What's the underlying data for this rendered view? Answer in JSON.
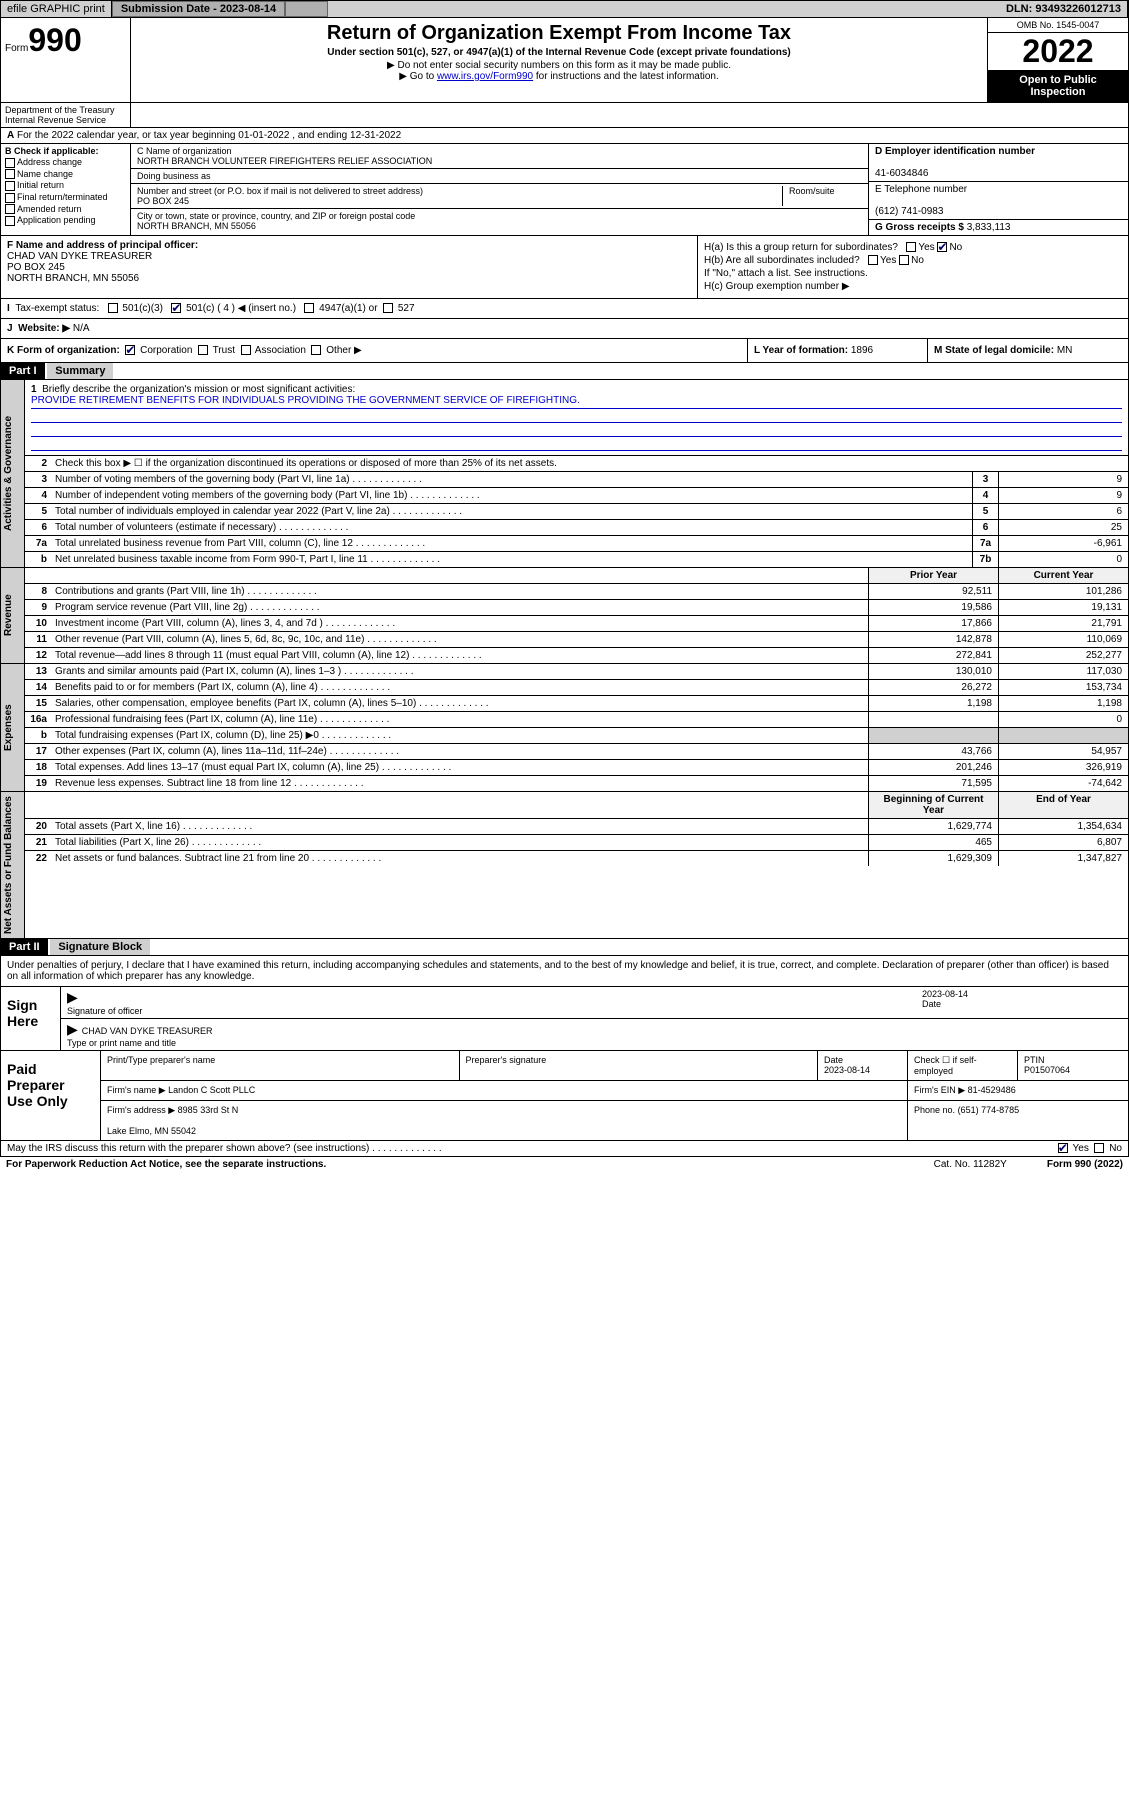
{
  "topbar": {
    "efile": "efile GRAPHIC print",
    "submission_label": "Submission Date - 2023-08-14",
    "dln": "DLN: 93493226012713"
  },
  "header": {
    "form_word": "Form",
    "form_num": "990",
    "title": "Return of Organization Exempt From Income Tax",
    "subtitle": "Under section 501(c), 527, or 4947(a)(1) of the Internal Revenue Code (except private foundations)",
    "note1": "▶ Do not enter social security numbers on this form as it may be made public.",
    "note2_pre": "▶ Go to ",
    "note2_link": "www.irs.gov/Form990",
    "note2_post": " for instructions and the latest information.",
    "omb": "OMB No. 1545-0047",
    "year": "2022",
    "open": "Open to Public Inspection",
    "dept": "Department of the Treasury",
    "irs": "Internal Revenue Service"
  },
  "section_a": "For the 2022 calendar year, or tax year beginning 01-01-2022   , and ending 12-31-2022",
  "col_b": {
    "label": "B Check if applicable:",
    "opts": [
      "Address change",
      "Name change",
      "Initial return",
      "Final return/terminated",
      "Amended return",
      "Application pending"
    ]
  },
  "col_c": {
    "c_label": "C Name of organization",
    "org_name": "NORTH BRANCH VOLUNTEER FIREFIGHTERS RELIEF ASSOCIATION",
    "dba": "Doing business as",
    "addr_label": "Number and street (or P.O. box if mail is not delivered to street address)",
    "room": "Room/suite",
    "addr": "PO BOX 245",
    "city_label": "City or town, state or province, country, and ZIP or foreign postal code",
    "city": "NORTH BRANCH, MN  55056"
  },
  "col_d": {
    "d_label": "D Employer identification number",
    "ein": "41-6034846",
    "e_label": "E Telephone number",
    "phone": "(612) 741-0983",
    "g_label": "G Gross receipts $",
    "gross": "3,833,113"
  },
  "block_f": {
    "f_label": "F Name and address of principal officer:",
    "name": "CHAD VAN DYKE TREASURER",
    "addr1": "PO BOX 245",
    "addr2": "NORTH BRANCH, MN  55056",
    "ha": "H(a)  Is this a group return for subordinates?",
    "hb": "H(b)  Are all subordinates included?",
    "hb_note": "If \"No,\" attach a list. See instructions.",
    "hc": "H(c)  Group exemption number ▶",
    "yes": "Yes",
    "no": "No"
  },
  "tax_status": {
    "i": "I",
    "label": "Tax-exempt status:",
    "c3": "501(c)(3)",
    "c4": "501(c) ( 4 ) ◀ (insert no.)",
    "a1": "4947(a)(1) or",
    "s527": "527",
    "j": "J",
    "web_label": "Website: ▶",
    "web": "N/A"
  },
  "block_k": {
    "k_label": "K Form of organization:",
    "corp": "Corporation",
    "trust": "Trust",
    "assoc": "Association",
    "other": "Other ▶",
    "l_label": "L Year of formation:",
    "l_val": "1896",
    "m_label": "M State of legal domicile:",
    "m_val": "MN"
  },
  "part1": {
    "hdr": "Part I",
    "title": "Summary",
    "q1": "Briefly describe the organization's mission or most significant activities:",
    "mission": "PROVIDE RETIREMENT BENEFITS FOR INDIVIDUALS PROVIDING THE GOVERNMENT SERVICE OF FIREFIGHTING.",
    "q2": "Check this box ▶ ☐  if the organization discontinued its operations or disposed of more than 25% of its net assets.",
    "rows_ag": [
      {
        "n": "3",
        "d": "Number of voting members of the governing body (Part VI, line 1a)",
        "b": "3",
        "v": "9"
      },
      {
        "n": "4",
        "d": "Number of independent voting members of the governing body (Part VI, line 1b)",
        "b": "4",
        "v": "9"
      },
      {
        "n": "5",
        "d": "Total number of individuals employed in calendar year 2022 (Part V, line 2a)",
        "b": "5",
        "v": "6"
      },
      {
        "n": "6",
        "d": "Total number of volunteers (estimate if necessary)",
        "b": "6",
        "v": "25"
      },
      {
        "n": "7a",
        "d": "Total unrelated business revenue from Part VIII, column (C), line 12",
        "b": "7a",
        "v": "-6,961"
      },
      {
        "n": "b",
        "d": "Net unrelated business taxable income from Form 990-T, Part I, line 11",
        "b": "7b",
        "v": "0"
      }
    ],
    "col_hdrs": {
      "py": "Prior Year",
      "cy": "Current Year"
    },
    "rows_rev": [
      {
        "n": "8",
        "d": "Contributions and grants (Part VIII, line 1h)",
        "py": "92,511",
        "cy": "101,286"
      },
      {
        "n": "9",
        "d": "Program service revenue (Part VIII, line 2g)",
        "py": "19,586",
        "cy": "19,131"
      },
      {
        "n": "10",
        "d": "Investment income (Part VIII, column (A), lines 3, 4, and 7d )",
        "py": "17,866",
        "cy": "21,791"
      },
      {
        "n": "11",
        "d": "Other revenue (Part VIII, column (A), lines 5, 6d, 8c, 9c, 10c, and 11e)",
        "py": "142,878",
        "cy": "110,069"
      },
      {
        "n": "12",
        "d": "Total revenue—add lines 8 through 11 (must equal Part VIII, column (A), line 12)",
        "py": "272,841",
        "cy": "252,277"
      }
    ],
    "rows_exp": [
      {
        "n": "13",
        "d": "Grants and similar amounts paid (Part IX, column (A), lines 1–3 )",
        "py": "130,010",
        "cy": "117,030"
      },
      {
        "n": "14",
        "d": "Benefits paid to or for members (Part IX, column (A), line 4)",
        "py": "26,272",
        "cy": "153,734"
      },
      {
        "n": "15",
        "d": "Salaries, other compensation, employee benefits (Part IX, column (A), lines 5–10)",
        "py": "1,198",
        "cy": "1,198"
      },
      {
        "n": "16a",
        "d": "Professional fundraising fees (Part IX, column (A), line 11e)",
        "py": "",
        "cy": "0"
      },
      {
        "n": "b",
        "d": "Total fundraising expenses (Part IX, column (D), line 25) ▶0",
        "py": "gray",
        "cy": "gray"
      },
      {
        "n": "17",
        "d": "Other expenses (Part IX, column (A), lines 11a–11d, 11f–24e)",
        "py": "43,766",
        "cy": "54,957"
      },
      {
        "n": "18",
        "d": "Total expenses. Add lines 13–17 (must equal Part IX, column (A), line 25)",
        "py": "201,246",
        "cy": "326,919"
      },
      {
        "n": "19",
        "d": "Revenue less expenses. Subtract line 18 from line 12",
        "py": "71,595",
        "cy": "-74,642"
      }
    ],
    "col_hdrs2": {
      "by": "Beginning of Current Year",
      "ey": "End of Year"
    },
    "rows_net": [
      {
        "n": "20",
        "d": "Total assets (Part X, line 16)",
        "py": "1,629,774",
        "cy": "1,354,634"
      },
      {
        "n": "21",
        "d": "Total liabilities (Part X, line 26)",
        "py": "465",
        "cy": "6,807"
      },
      {
        "n": "22",
        "d": "Net assets or fund balances. Subtract line 21 from line 20",
        "py": "1,629,309",
        "cy": "1,347,827"
      }
    ],
    "vlabels": {
      "ag": "Activities & Governance",
      "rev": "Revenue",
      "exp": "Expenses",
      "net": "Net Assets or Fund Balances"
    }
  },
  "part2": {
    "hdr": "Part II",
    "title": "Signature Block",
    "intro": "Under penalties of perjury, I declare that I have examined this return, including accompanying schedules and statements, and to the best of my knowledge and belief, it is true, correct, and complete. Declaration of preparer (other than officer) is based on all information of which preparer has any knowledge.",
    "sign_here": "Sign Here",
    "sig_officer": "Signature of officer",
    "date": "Date",
    "date_val": "2023-08-14",
    "name_title": "CHAD VAN DYKE  TREASURER",
    "type_name": "Type or print name and title",
    "paid": "Paid Preparer Use Only",
    "prep_name_hdr": "Print/Type preparer's name",
    "prep_sig_hdr": "Preparer's signature",
    "prep_date_hdr": "Date",
    "prep_date": "2023-08-14",
    "check_if": "Check ☐ if self-employed",
    "ptin_hdr": "PTIN",
    "ptin": "P01507064",
    "firm_name_lbl": "Firm's name    ▶",
    "firm_name": "Landon C Scott PLLC",
    "firm_ein_lbl": "Firm's EIN ▶",
    "firm_ein": "81-4529486",
    "firm_addr_lbl": "Firm's address ▶",
    "firm_addr1": "8985 33rd St N",
    "firm_addr2": "Lake Elmo, MN  55042",
    "phone_lbl": "Phone no.",
    "phone": "(651) 774-8785"
  },
  "footer": {
    "discuss": "May the IRS discuss this return with the preparer shown above? (see instructions)",
    "yes": "Yes",
    "no": "No",
    "paperwork": "For Paperwork Reduction Act Notice, see the separate instructions.",
    "cat": "Cat. No. 11282Y",
    "form": "Form 990 (2022)"
  }
}
